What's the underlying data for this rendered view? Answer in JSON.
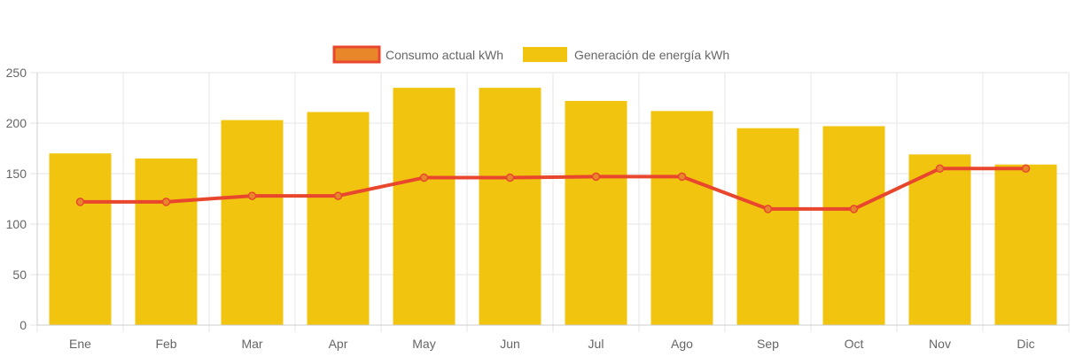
{
  "chart_data": {
    "type": "bar",
    "categories": [
      "Ene",
      "Feb",
      "Mar",
      "Apr",
      "May",
      "Jun",
      "Jul",
      "Ago",
      "Sep",
      "Oct",
      "Nov",
      "Dic"
    ],
    "series": [
      {
        "name": "Consumo actual kWh",
        "type": "line",
        "color": "#e8472e",
        "fill": "#e8872a",
        "values": [
          122,
          122,
          128,
          128,
          146,
          146,
          147,
          147,
          115,
          115,
          155,
          155
        ]
      },
      {
        "name": "Generación de energía kWh",
        "type": "bar",
        "color": "#f1c40f",
        "values": [
          170,
          165,
          203,
          211,
          235,
          235,
          222,
          212,
          195,
          197,
          169,
          159
        ]
      }
    ],
    "ylim": [
      0,
      250
    ],
    "yticks": [
      0,
      50,
      100,
      150,
      200,
      250
    ],
    "grid": true,
    "legend_position": "top-center",
    "title": "",
    "xlabel": "",
    "ylabel": ""
  }
}
